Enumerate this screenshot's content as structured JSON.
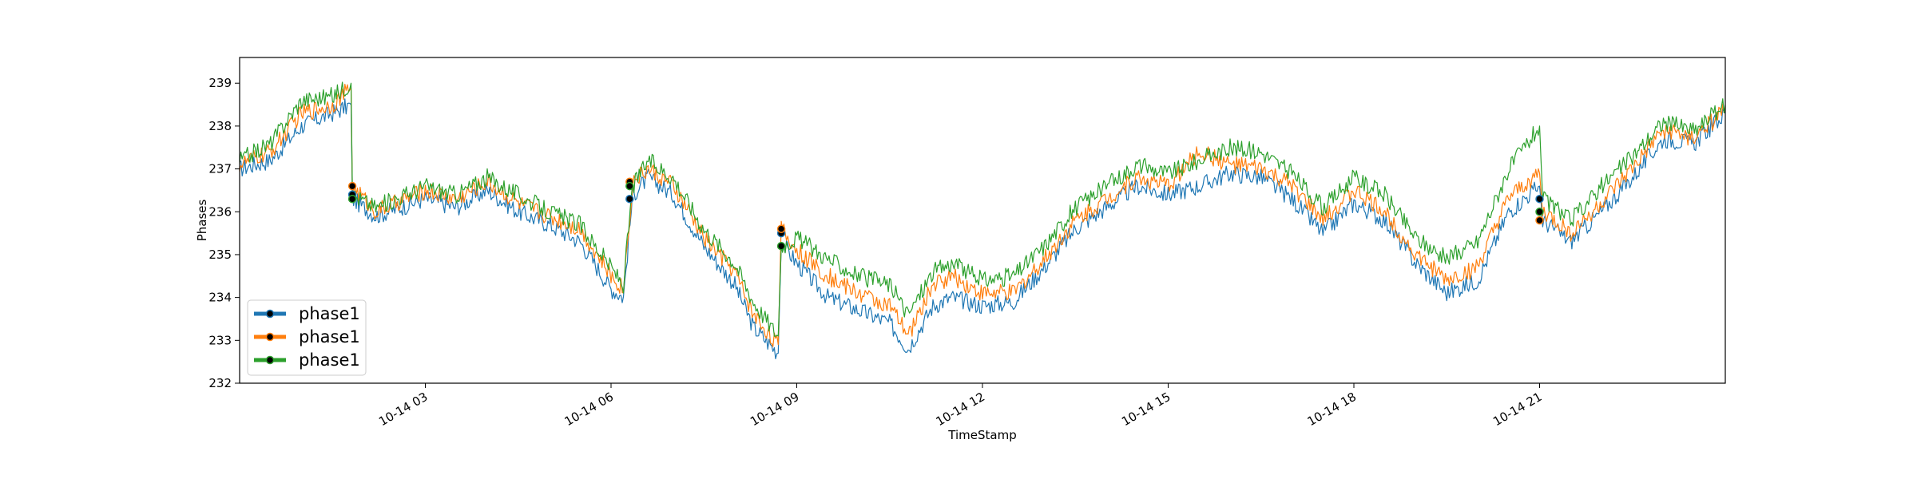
{
  "chart_data": {
    "type": "line",
    "title": "",
    "xlabel": "TimeStamp",
    "ylabel": "Phases",
    "xlim": [
      "10-14 00:00",
      "10-14 24:00"
    ],
    "ylim": [
      232,
      239.6
    ],
    "x_ticks": [
      "10-14 03",
      "10-14 06",
      "10-14 09",
      "10-14 12",
      "10-14 15",
      "10-14 18",
      "10-14 21"
    ],
    "y_ticks": [
      "232",
      "233",
      "234",
      "235",
      "236",
      "237",
      "238",
      "239"
    ],
    "grid": false,
    "legend": {
      "placement": "lower-left",
      "entries": [
        "phase1",
        "phase1",
        "phase1"
      ]
    },
    "x_hours": [
      0,
      0.5,
      1.0,
      1.5,
      1.8,
      1.82,
      2.2,
      3.0,
      3.5,
      4.0,
      4.5,
      5.0,
      5.5,
      6.0,
      6.2,
      6.35,
      6.6,
      7.0,
      7.5,
      8.0,
      8.3,
      8.7,
      8.75,
      9.0,
      9.5,
      10.0,
      10.5,
      10.8,
      11.2,
      11.5,
      12.0,
      12.5,
      13.0,
      13.5,
      14.0,
      14.5,
      15.0,
      15.5,
      16.0,
      16.5,
      17.0,
      17.5,
      18.0,
      18.5,
      19.0,
      19.5,
      20.0,
      20.5,
      21.0,
      21.05,
      21.5,
      22.0,
      22.5,
      23.0,
      23.5,
      24.0
    ],
    "series": [
      {
        "name": "phase1",
        "color": "#1f77b4",
        "values": [
          237.0,
          237.2,
          238.0,
          238.3,
          238.5,
          236.3,
          235.9,
          236.3,
          236.1,
          236.5,
          236.0,
          235.7,
          235.3,
          234.2,
          234.0,
          236.4,
          236.8,
          236.4,
          235.2,
          234.3,
          233.3,
          232.7,
          235.3,
          234.8,
          234.0,
          233.7,
          233.4,
          232.8,
          233.8,
          234.0,
          233.8,
          233.9,
          234.7,
          235.6,
          236.1,
          236.6,
          236.4,
          236.6,
          236.9,
          236.8,
          236.3,
          235.5,
          236.2,
          235.8,
          234.8,
          234.1,
          234.4,
          236.0,
          236.6,
          235.8,
          235.3,
          236.0,
          236.8,
          237.7,
          237.6,
          238.3
        ]
      },
      {
        "name": "phase1",
        "color": "#ff7f0e",
        "values": [
          237.1,
          237.4,
          238.3,
          238.5,
          238.9,
          236.6,
          236.0,
          236.5,
          236.3,
          236.7,
          236.2,
          235.9,
          235.6,
          234.5,
          234.2,
          236.7,
          237.0,
          236.6,
          235.4,
          234.6,
          233.6,
          232.9,
          235.6,
          235.1,
          234.5,
          234.1,
          233.8,
          233.1,
          234.3,
          234.5,
          234.1,
          234.1,
          234.9,
          235.8,
          236.3,
          236.8,
          236.6,
          237.4,
          237.1,
          237.0,
          236.6,
          235.8,
          236.5,
          236.0,
          235.0,
          234.4,
          234.7,
          236.3,
          236.9,
          236.0,
          235.5,
          236.2,
          237.0,
          237.9,
          237.7,
          238.4
        ]
      },
      {
        "name": "phase1",
        "color": "#2ca02c",
        "values": [
          237.2,
          237.6,
          238.6,
          238.7,
          239.0,
          236.4,
          236.1,
          236.6,
          236.4,
          236.8,
          236.4,
          236.0,
          235.7,
          234.7,
          234.3,
          236.6,
          237.2,
          236.8,
          235.6,
          234.8,
          233.9,
          233.1,
          235.2,
          235.4,
          234.9,
          234.5,
          234.3,
          233.6,
          234.6,
          234.8,
          234.4,
          234.5,
          235.2,
          236.1,
          236.6,
          237.1,
          236.9,
          237.2,
          237.5,
          237.4,
          236.9,
          236.1,
          236.8,
          236.4,
          235.4,
          234.9,
          235.3,
          237.0,
          238.0,
          236.3,
          235.8,
          236.6,
          237.3,
          238.1,
          237.9,
          238.5
        ]
      }
    ],
    "markers": [
      {
        "series": 0,
        "x_hour": 1.82,
        "y": 236.4
      },
      {
        "series": 1,
        "x_hour": 1.82,
        "y": 236.6
      },
      {
        "series": 2,
        "x_hour": 1.82,
        "y": 236.3
      },
      {
        "series": 0,
        "x_hour": 6.3,
        "y": 236.3
      },
      {
        "series": 1,
        "x_hour": 6.3,
        "y": 236.7
      },
      {
        "series": 2,
        "x_hour": 6.3,
        "y": 236.6
      },
      {
        "series": 0,
        "x_hour": 8.75,
        "y": 235.5
      },
      {
        "series": 1,
        "x_hour": 8.75,
        "y": 235.6
      },
      {
        "series": 2,
        "x_hour": 8.75,
        "y": 235.2
      },
      {
        "series": 0,
        "x_hour": 21.0,
        "y": 236.3
      },
      {
        "series": 1,
        "x_hour": 21.0,
        "y": 235.8
      },
      {
        "series": 2,
        "x_hour": 21.0,
        "y": 236.0
      }
    ]
  }
}
